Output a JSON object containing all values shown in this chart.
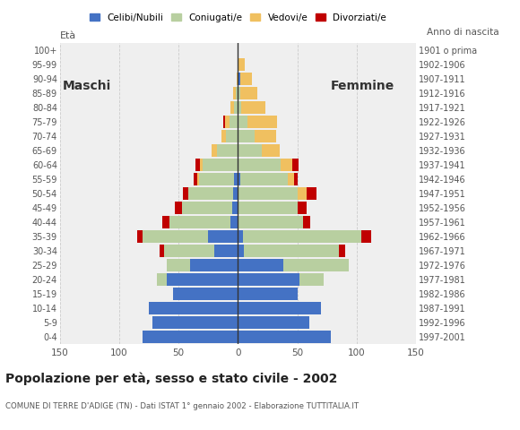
{
  "age_groups": [
    "0-4",
    "5-9",
    "10-14",
    "15-19",
    "20-24",
    "25-29",
    "30-34",
    "35-39",
    "40-44",
    "45-49",
    "50-54",
    "55-59",
    "60-64",
    "65-69",
    "70-74",
    "75-79",
    "80-84",
    "85-89",
    "90-94",
    "95-99",
    "100+"
  ],
  "birth_years": [
    "1997-2001",
    "1992-1996",
    "1987-1991",
    "1982-1986",
    "1977-1981",
    "1972-1976",
    "1967-1971",
    "1962-1966",
    "1957-1961",
    "1952-1956",
    "1947-1951",
    "1942-1946",
    "1937-1941",
    "1932-1936",
    "1927-1931",
    "1922-1926",
    "1917-1921",
    "1912-1916",
    "1907-1911",
    "1902-1906",
    "1901 o prima"
  ],
  "male": {
    "celibi": [
      80,
      72,
      75,
      55,
      60,
      40,
      20,
      25,
      6,
      5,
      4,
      3,
      0,
      0,
      0,
      0,
      0,
      0,
      0,
      0,
      0
    ],
    "coniugati": [
      0,
      0,
      0,
      0,
      8,
      20,
      42,
      55,
      52,
      42,
      38,
      30,
      30,
      18,
      10,
      7,
      3,
      2,
      0,
      0,
      0
    ],
    "vedovi": [
      0,
      0,
      0,
      0,
      0,
      0,
      0,
      0,
      0,
      0,
      0,
      1,
      2,
      4,
      4,
      4,
      3,
      2,
      1,
      0,
      0
    ],
    "divorziati": [
      0,
      0,
      0,
      0,
      0,
      0,
      4,
      5,
      6,
      6,
      4,
      3,
      4,
      0,
      0,
      1,
      0,
      0,
      0,
      0,
      0
    ]
  },
  "female": {
    "celibi": [
      78,
      60,
      70,
      50,
      52,
      38,
      5,
      4,
      0,
      0,
      0,
      2,
      0,
      0,
      0,
      0,
      0,
      0,
      2,
      0,
      0
    ],
    "coniugati": [
      0,
      0,
      0,
      0,
      20,
      55,
      80,
      100,
      55,
      50,
      50,
      40,
      36,
      20,
      14,
      8,
      3,
      2,
      0,
      0,
      0
    ],
    "vedovi": [
      0,
      0,
      0,
      0,
      0,
      0,
      0,
      0,
      0,
      0,
      8,
      5,
      10,
      15,
      18,
      25,
      20,
      14,
      10,
      6,
      0
    ],
    "divorziati": [
      0,
      0,
      0,
      0,
      0,
      0,
      5,
      8,
      6,
      8,
      8,
      3,
      5,
      0,
      0,
      0,
      0,
      0,
      0,
      0,
      0
    ]
  },
  "colors": {
    "celibi": "#4472c4",
    "coniugati": "#b8cfa0",
    "vedovi": "#f0c060",
    "divorziati": "#c00000"
  },
  "xlim": 150,
  "title": "Popolazione per età, sesso e stato civile - 2002",
  "subtitle": "COMUNE DI TERRE D'ADIGE (TN) - Dati ISTAT 1° gennaio 2002 - Elaborazione TUTTITALIA.IT",
  "ylabel_left": "Età",
  "ylabel_right": "Anno di nascita",
  "label_maschi": "Maschi",
  "label_femmine": "Femmine",
  "legend_labels": [
    "Celibi/Nubili",
    "Coniugati/e",
    "Vedovi/e",
    "Divorziati/e"
  ],
  "bg_color": "#ffffff",
  "plot_bg": "#efefef",
  "grid_color": "#cccccc"
}
